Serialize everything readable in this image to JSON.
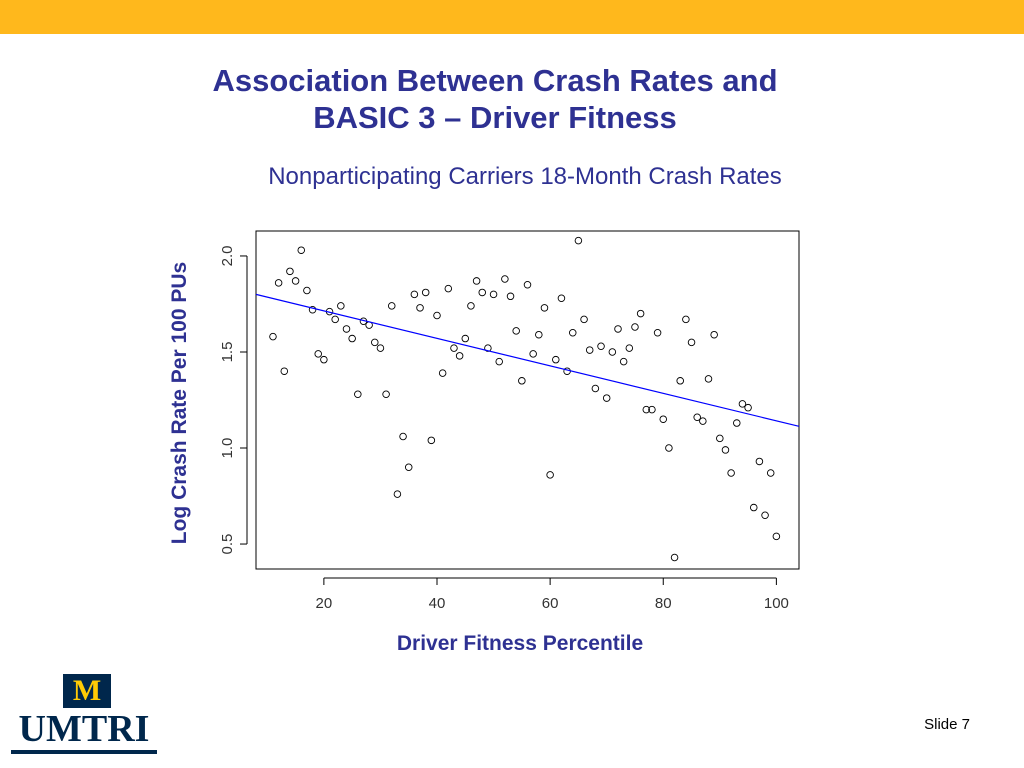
{
  "header": {
    "title_line1": "Association Between Crash Rates and",
    "title_line2": "BASIC 3 – Driver Fitness",
    "subtitle": "Nonparticipating Carriers 18-Month Crash Rates"
  },
  "logo": {
    "mark": "M",
    "text": "UMTRI"
  },
  "footer": {
    "slide_number": "Slide 7"
  },
  "colors": {
    "top_bar": "#FFB81C",
    "title": "#2E3192",
    "regression_line": "#0000FF",
    "logo_navy": "#00274C",
    "logo_maize": "#FFCB05"
  },
  "chart_data": {
    "type": "scatter",
    "xlabel": "Driver Fitness Percentile",
    "ylabel": "Log Crash Rate Per 100 PUs",
    "xlim": [
      8,
      104
    ],
    "ylim": [
      0.37,
      2.13
    ],
    "x_ticks": [
      20,
      40,
      60,
      80,
      100
    ],
    "x_tick_labels": [
      "20",
      "40",
      "60",
      "80",
      "100"
    ],
    "y_ticks": [
      0.5,
      1.0,
      1.5,
      2.0
    ],
    "y_tick_labels": [
      "0.5",
      "1.0",
      "1.5",
      "2.0"
    ],
    "grid": false,
    "regression_line": {
      "x": [
        8,
        104
      ],
      "y": [
        1.8,
        1.113
      ]
    },
    "points": [
      {
        "x": 11,
        "y": 1.58
      },
      {
        "x": 12,
        "y": 1.86
      },
      {
        "x": 13,
        "y": 1.4
      },
      {
        "x": 14,
        "y": 1.92
      },
      {
        "x": 15,
        "y": 1.87
      },
      {
        "x": 16,
        "y": 2.03
      },
      {
        "x": 17,
        "y": 1.82
      },
      {
        "x": 18,
        "y": 1.72
      },
      {
        "x": 19,
        "y": 1.49
      },
      {
        "x": 20,
        "y": 1.46
      },
      {
        "x": 21,
        "y": 1.71
      },
      {
        "x": 22,
        "y": 1.67
      },
      {
        "x": 23,
        "y": 1.74
      },
      {
        "x": 24,
        "y": 1.62
      },
      {
        "x": 25,
        "y": 1.57
      },
      {
        "x": 26,
        "y": 1.28
      },
      {
        "x": 27,
        "y": 1.66
      },
      {
        "x": 28,
        "y": 1.64
      },
      {
        "x": 29,
        "y": 1.55
      },
      {
        "x": 30,
        "y": 1.52
      },
      {
        "x": 31,
        "y": 1.28
      },
      {
        "x": 32,
        "y": 1.74
      },
      {
        "x": 33,
        "y": 0.76
      },
      {
        "x": 34,
        "y": 1.06
      },
      {
        "x": 35,
        "y": 0.9
      },
      {
        "x": 36,
        "y": 1.8
      },
      {
        "x": 37,
        "y": 1.73
      },
      {
        "x": 38,
        "y": 1.81
      },
      {
        "x": 39,
        "y": 1.04
      },
      {
        "x": 40,
        "y": 1.69
      },
      {
        "x": 41,
        "y": 1.39
      },
      {
        "x": 42,
        "y": 1.83
      },
      {
        "x": 43,
        "y": 1.52
      },
      {
        "x": 44,
        "y": 1.48
      },
      {
        "x": 45,
        "y": 1.57
      },
      {
        "x": 46,
        "y": 1.74
      },
      {
        "x": 47,
        "y": 1.87
      },
      {
        "x": 48,
        "y": 1.81
      },
      {
        "x": 49,
        "y": 1.52
      },
      {
        "x": 50,
        "y": 1.8
      },
      {
        "x": 51,
        "y": 1.45
      },
      {
        "x": 52,
        "y": 1.88
      },
      {
        "x": 53,
        "y": 1.79
      },
      {
        "x": 54,
        "y": 1.61
      },
      {
        "x": 55,
        "y": 1.35
      },
      {
        "x": 56,
        "y": 1.85
      },
      {
        "x": 57,
        "y": 1.49
      },
      {
        "x": 58,
        "y": 1.59
      },
      {
        "x": 59,
        "y": 1.73
      },
      {
        "x": 60,
        "y": 0.86
      },
      {
        "x": 61,
        "y": 1.46
      },
      {
        "x": 62,
        "y": 1.78
      },
      {
        "x": 63,
        "y": 1.4
      },
      {
        "x": 64,
        "y": 1.6
      },
      {
        "x": 65,
        "y": 2.08
      },
      {
        "x": 66,
        "y": 1.67
      },
      {
        "x": 67,
        "y": 1.51
      },
      {
        "x": 68,
        "y": 1.31
      },
      {
        "x": 69,
        "y": 1.53
      },
      {
        "x": 70,
        "y": 1.26
      },
      {
        "x": 71,
        "y": 1.5
      },
      {
        "x": 72,
        "y": 1.62
      },
      {
        "x": 73,
        "y": 1.45
      },
      {
        "x": 74,
        "y": 1.52
      },
      {
        "x": 75,
        "y": 1.63
      },
      {
        "x": 76,
        "y": 1.7
      },
      {
        "x": 77,
        "y": 1.2
      },
      {
        "x": 78,
        "y": 1.2
      },
      {
        "x": 79,
        "y": 1.6
      },
      {
        "x": 80,
        "y": 1.15
      },
      {
        "x": 81,
        "y": 1.0
      },
      {
        "x": 82,
        "y": 0.43
      },
      {
        "x": 83,
        "y": 1.35
      },
      {
        "x": 84,
        "y": 1.67
      },
      {
        "x": 85,
        "y": 1.55
      },
      {
        "x": 86,
        "y": 1.16
      },
      {
        "x": 87,
        "y": 1.14
      },
      {
        "x": 88,
        "y": 1.36
      },
      {
        "x": 89,
        "y": 1.59
      },
      {
        "x": 90,
        "y": 1.05
      },
      {
        "x": 91,
        "y": 0.99
      },
      {
        "x": 92,
        "y": 0.87
      },
      {
        "x": 93,
        "y": 1.13
      },
      {
        "x": 94,
        "y": 1.23
      },
      {
        "x": 95,
        "y": 1.21
      },
      {
        "x": 96,
        "y": 0.69
      },
      {
        "x": 97,
        "y": 0.93
      },
      {
        "x": 98,
        "y": 0.65
      },
      {
        "x": 99,
        "y": 0.87
      },
      {
        "x": 100,
        "y": 0.54
      }
    ]
  }
}
